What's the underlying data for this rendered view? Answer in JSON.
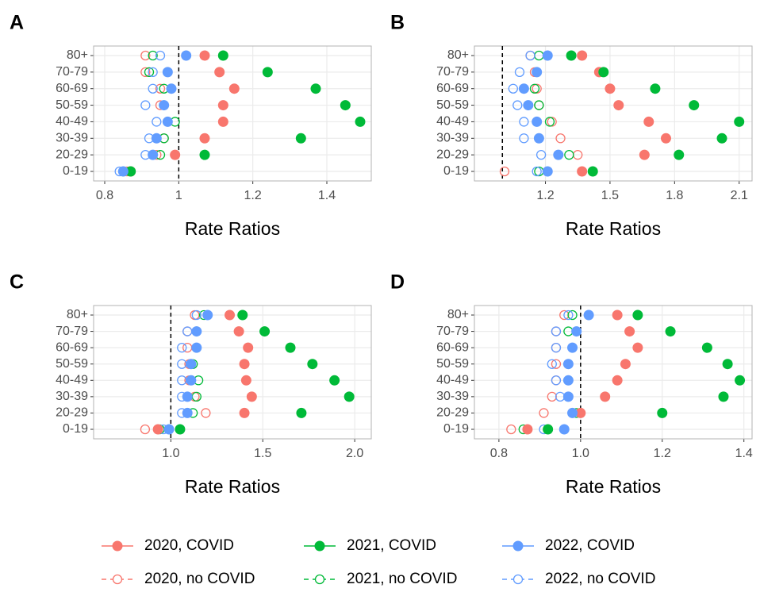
{
  "chart_data": [
    {
      "type": "dot",
      "panel": "A",
      "xlabel": "Rate Ratios",
      "categories": [
        "80+",
        "70-79",
        "60-69",
        "50-59",
        "40-49",
        "30-39",
        "20-29",
        "0-19"
      ],
      "xlim": [
        0.77,
        1.52
      ],
      "xticks": [
        0.8,
        1.0,
        1.2,
        1.4
      ],
      "reference_line": 1,
      "grid": true,
      "series": [
        {
          "name": "2020, COVID",
          "color": "#F8766D",
          "marker": "filled",
          "values": [
            1.07,
            1.11,
            1.15,
            1.12,
            1.12,
            1.07,
            0.99,
            0.87
          ]
        },
        {
          "name": "2021, COVID",
          "color": "#00BA38",
          "marker": "filled",
          "values": [
            1.12,
            1.24,
            1.37,
            1.45,
            1.49,
            1.33,
            1.07,
            0.87
          ]
        },
        {
          "name": "2022, COVID",
          "color": "#619CFF",
          "marker": "filled",
          "values": [
            1.02,
            0.97,
            0.98,
            0.96,
            0.97,
            0.94,
            0.93,
            0.85
          ]
        },
        {
          "name": "2020, no COVID",
          "color": "#F8766D",
          "marker": "open",
          "values": [
            0.91,
            0.91,
            0.95,
            0.95,
            0.97,
            0.96,
            0.94,
            0.86
          ]
        },
        {
          "name": "2021, no COVID",
          "color": "#00BA38",
          "marker": "open",
          "values": [
            0.93,
            0.92,
            0.96,
            0.96,
            0.99,
            0.96,
            0.95,
            0.85
          ]
        },
        {
          "name": "2022, no COVID",
          "color": "#619CFF",
          "marker": "open",
          "values": [
            0.95,
            0.93,
            0.93,
            0.91,
            0.94,
            0.92,
            0.91,
            0.84
          ]
        }
      ]
    },
    {
      "type": "dot",
      "panel": "B",
      "xlabel": "Rate Ratios",
      "categories": [
        "80+",
        "70-79",
        "60-69",
        "50-59",
        "40-49",
        "30-39",
        "20-29",
        "0-19"
      ],
      "xlim": [
        0.87,
        2.16
      ],
      "xticks": [
        1.2,
        1.5,
        1.8,
        2.1
      ],
      "reference_line": 1,
      "grid": true,
      "series": [
        {
          "name": "2020, COVID",
          "color": "#F8766D",
          "marker": "filled",
          "values": [
            1.37,
            1.45,
            1.5,
            1.54,
            1.68,
            1.76,
            1.66,
            1.37
          ]
        },
        {
          "name": "2021, COVID",
          "color": "#00BA38",
          "marker": "filled",
          "values": [
            1.32,
            1.47,
            1.71,
            1.89,
            2.1,
            2.02,
            1.82,
            1.42
          ]
        },
        {
          "name": "2022, COVID",
          "color": "#619CFF",
          "marker": "filled",
          "values": [
            1.21,
            1.16,
            1.1,
            1.12,
            1.16,
            1.17,
            1.26,
            1.21
          ]
        },
        {
          "name": "2020, no COVID",
          "color": "#F8766D",
          "marker": "open",
          "values": [
            1.13,
            1.15,
            1.16,
            1.17,
            1.23,
            1.27,
            1.35,
            1.01
          ]
        },
        {
          "name": "2021, no COVID",
          "color": "#00BA38",
          "marker": "open",
          "values": [
            1.17,
            1.16,
            1.15,
            1.17,
            1.22,
            1.17,
            1.31,
            1.17
          ]
        },
        {
          "name": "2022, no COVID",
          "color": "#619CFF",
          "marker": "open",
          "values": [
            1.13,
            1.08,
            1.05,
            1.07,
            1.1,
            1.1,
            1.18,
            1.16
          ]
        }
      ]
    },
    {
      "type": "dot",
      "panel": "C",
      "xlabel": "Rate Ratios",
      "categories": [
        "80+",
        "70-79",
        "60-69",
        "50-59",
        "40-49",
        "30-39",
        "20-29",
        "0-19"
      ],
      "xlim": [
        0.58,
        2.09
      ],
      "xticks": [
        {
          "value": 1,
          "label": "1.0"
        },
        1.5,
        {
          "value": 2,
          "label": "2.0"
        }
      ],
      "reference_line": 1,
      "grid": true,
      "series": [
        {
          "name": "2020, COVID",
          "color": "#F8766D",
          "marker": "filled",
          "values": [
            1.32,
            1.37,
            1.42,
            1.4,
            1.41,
            1.44,
            1.4,
            0.93
          ]
        },
        {
          "name": "2021, COVID",
          "color": "#00BA38",
          "marker": "filled",
          "values": [
            1.39,
            1.51,
            1.65,
            1.77,
            1.89,
            1.97,
            1.71,
            1.05
          ]
        },
        {
          "name": "2022, COVID",
          "color": "#619CFF",
          "marker": "filled",
          "values": [
            1.2,
            1.14,
            1.14,
            1.11,
            1.11,
            1.09,
            1.09,
            0.99
          ]
        },
        {
          "name": "2020, no COVID",
          "color": "#F8766D",
          "marker": "open",
          "values": [
            1.13,
            1.09,
            1.09,
            1.1,
            1.1,
            1.13,
            1.19,
            0.86
          ]
        },
        {
          "name": "2021, no COVID",
          "color": "#00BA38",
          "marker": "open",
          "values": [
            1.18,
            1.14,
            1.14,
            1.12,
            1.15,
            1.14,
            1.12,
            0.94
          ]
        },
        {
          "name": "2022, no COVID",
          "color": "#619CFF",
          "marker": "open",
          "values": [
            1.14,
            1.09,
            1.06,
            1.06,
            1.06,
            1.06,
            1.06,
            0.96
          ]
        }
      ]
    },
    {
      "type": "dot",
      "panel": "D",
      "xlabel": "Rate Ratios",
      "categories": [
        "80+",
        "70-79",
        "60-69",
        "50-59",
        "40-49",
        "30-39",
        "20-29",
        "0-19"
      ],
      "xlim": [
        0.74,
        1.42
      ],
      "xticks": [
        0.8,
        {
          "value": 1,
          "label": "1.0"
        },
        1.2,
        1.4
      ],
      "reference_line": 1,
      "grid": true,
      "series": [
        {
          "name": "2020, COVID",
          "color": "#F8766D",
          "marker": "filled",
          "values": [
            1.09,
            1.12,
            1.14,
            1.11,
            1.09,
            1.06,
            1.0,
            0.87
          ]
        },
        {
          "name": "2021, COVID",
          "color": "#00BA38",
          "marker": "filled",
          "values": [
            1.14,
            1.22,
            1.31,
            1.36,
            1.39,
            1.35,
            1.2,
            0.92
          ]
        },
        {
          "name": "2022, COVID",
          "color": "#619CFF",
          "marker": "filled",
          "values": [
            1.02,
            0.99,
            0.98,
            0.97,
            0.97,
            0.97,
            0.98,
            0.96
          ]
        },
        {
          "name": "2020, no COVID",
          "color": "#F8766D",
          "marker": "open",
          "values": [
            0.96,
            0.94,
            0.94,
            0.94,
            0.94,
            0.93,
            0.91,
            0.83
          ]
        },
        {
          "name": "2021, no COVID",
          "color": "#00BA38",
          "marker": "open",
          "values": [
            0.98,
            0.97,
            0.98,
            0.97,
            0.97,
            0.97,
            0.99,
            0.86
          ]
        },
        {
          "name": "2022, no COVID",
          "color": "#619CFF",
          "marker": "open",
          "values": [
            0.97,
            0.94,
            0.94,
            0.93,
            0.94,
            0.95,
            0.98,
            0.91
          ]
        }
      ]
    }
  ]
}
